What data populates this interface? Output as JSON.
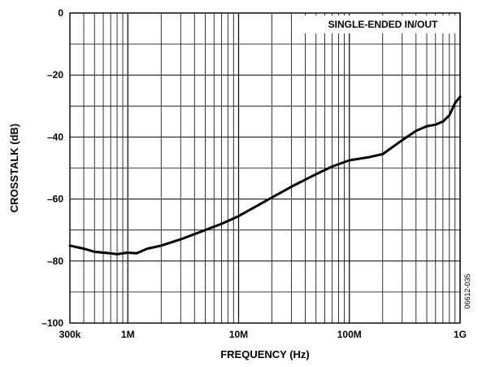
{
  "chart_data": {
    "type": "line",
    "xlabel": "FREQUENCY (Hz)",
    "ylabel": "CROSSTALK (dB)",
    "xscale": "log",
    "xlim": [
      300000,
      1000000000
    ],
    "ylim": [
      -100,
      0
    ],
    "x_tick_values": [
      300000,
      1000000,
      10000000,
      100000000,
      1000000000
    ],
    "x_tick_labels": [
      "300k",
      "1M",
      "10M",
      "100M",
      "1G"
    ],
    "y_tick_values": [
      0,
      -20,
      -40,
      -60,
      -80,
      -100
    ],
    "y_tick_labels": [
      "0",
      "–20",
      "–40",
      "–60",
      "–80",
      "–100"
    ],
    "grid": true,
    "legend_text": "SINGLE-ENDED IN/OUT",
    "legend_position": "top-right",
    "figure_id": "06612-035",
    "line_color": "#000000",
    "series": [
      {
        "x": [
          300000,
          400000,
          500000,
          600000,
          700000,
          800000,
          900000,
          1000000,
          1200000,
          1500000,
          2000000,
          3000000,
          5000000,
          7000000,
          10000000,
          15000000,
          20000000,
          30000000,
          50000000,
          70000000,
          100000000,
          150000000,
          200000000,
          300000000,
          400000000,
          500000000,
          600000000,
          700000000,
          800000000,
          900000000,
          1000000000
        ],
        "y": [
          -75,
          -76,
          -77,
          -77.3,
          -77.5,
          -77.8,
          -77.5,
          -77.3,
          -77.5,
          -76,
          -75,
          -73,
          -70,
          -68,
          -65.5,
          -62,
          -59.5,
          -56,
          -52,
          -49.5,
          -47.5,
          -46.5,
          -45.5,
          -41,
          -38,
          -36.5,
          -36,
          -35,
          -33,
          -29,
          -27
        ]
      }
    ]
  }
}
